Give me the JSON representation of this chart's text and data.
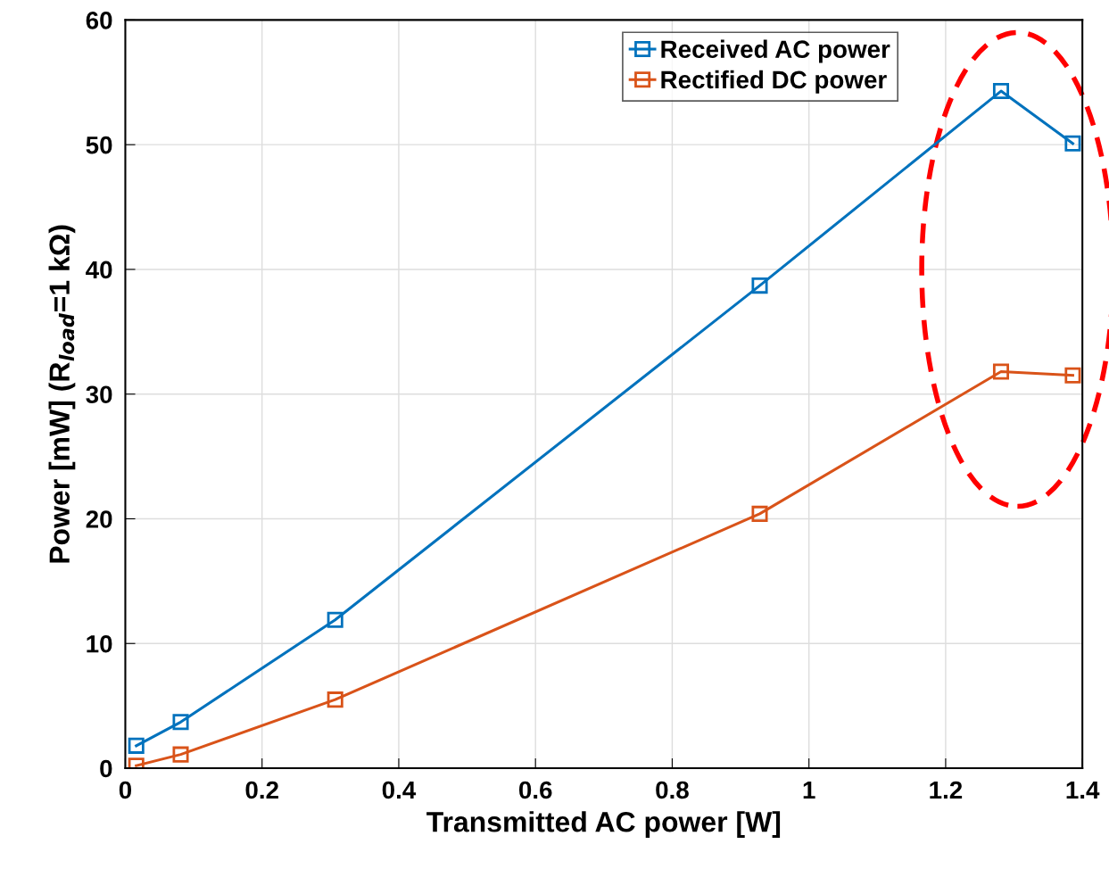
{
  "chart_data": {
    "type": "line",
    "xlabel": "Transmitted AC power [W]",
    "ylabel": "Power [mW] (R$_{load}$=1 kΩ)",
    "x": [
      0.016,
      0.081,
      0.307,
      0.928,
      1.281,
      1.386
    ],
    "series": [
      {
        "name": "Received AC power",
        "color": "#0072bd",
        "values": [
          1.8,
          3.7,
          11.9,
          38.7,
          54.3,
          50.1
        ]
      },
      {
        "name": "Rectified DC power",
        "color": "#d95319",
        "values": [
          0.2,
          1.1,
          5.5,
          20.4,
          31.8,
          31.5
        ]
      }
    ],
    "xlim": [
      0,
      1.4
    ],
    "xticks": [
      0,
      0.2,
      0.4,
      0.6,
      0.8,
      1,
      1.2,
      1.4
    ],
    "ylim": [
      0,
      60
    ],
    "yticks": [
      0,
      10,
      20,
      30,
      40,
      50,
      60
    ],
    "grid": true,
    "legend": "top right",
    "marker": "square",
    "line_style": "solid"
  }
}
